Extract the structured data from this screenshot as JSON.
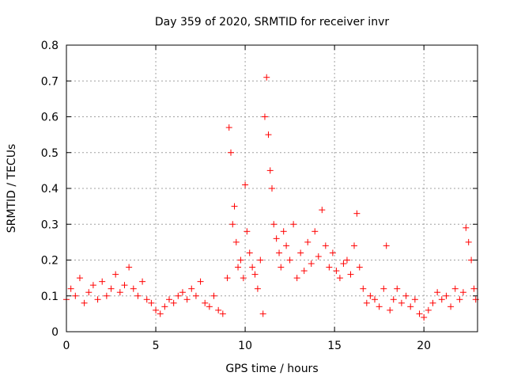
{
  "chart_data": {
    "type": "scatter",
    "title": "Day 359 of 2020, SRMTID for receiver invr",
    "xlabel": "GPS time / hours",
    "ylabel": "SRMTID / TECUs",
    "xlim": [
      0,
      23
    ],
    "ylim": [
      0,
      0.8
    ],
    "x_ticks": [
      0,
      5,
      10,
      15,
      20
    ],
    "x_tick_labels": [
      "0",
      "5",
      "10",
      "15",
      "20"
    ],
    "y_ticks": [
      0,
      0.1,
      0.2,
      0.3,
      0.4,
      0.5,
      0.6,
      0.7,
      0.8
    ],
    "y_tick_labels": [
      "0",
      "0.1",
      "0.2",
      "0.3",
      "0.4",
      "0.5",
      "0.6",
      "0.7",
      "0.8"
    ],
    "grid": true,
    "marker": "+",
    "series_color": "#ff0000",
    "series": [
      {
        "name": "SRMTID",
        "x": [
          0.0,
          0.25,
          0.5,
          0.75,
          1.0,
          1.25,
          1.5,
          1.75,
          2.0,
          2.25,
          2.5,
          2.75,
          3.0,
          3.25,
          3.5,
          3.75,
          4.0,
          4.25,
          4.5,
          4.75,
          5.0,
          5.25,
          5.5,
          5.75,
          6.0,
          6.25,
          6.5,
          6.75,
          7.0,
          7.25,
          7.5,
          7.75,
          8.0,
          8.25,
          8.5,
          8.75,
          9.0,
          9.1,
          9.2,
          9.3,
          9.4,
          9.5,
          9.6,
          9.75,
          9.9,
          10.0,
          10.1,
          10.25,
          10.4,
          10.55,
          10.7,
          10.85,
          11.0,
          11.1,
          11.2,
          11.3,
          11.4,
          11.5,
          11.6,
          11.75,
          11.9,
          12.0,
          12.15,
          12.3,
          12.5,
          12.7,
          12.9,
          13.1,
          13.3,
          13.5,
          13.7,
          13.9,
          14.1,
          14.3,
          14.5,
          14.7,
          14.9,
          15.1,
          15.3,
          15.5,
          15.7,
          15.9,
          16.1,
          16.25,
          16.4,
          16.6,
          16.8,
          17.0,
          17.25,
          17.5,
          17.75,
          17.9,
          18.1,
          18.3,
          18.5,
          18.75,
          19.0,
          19.25,
          19.5,
          19.75,
          20.0,
          20.25,
          20.5,
          20.75,
          21.0,
          21.25,
          21.5,
          21.75,
          22.0,
          22.2,
          22.35,
          22.5,
          22.65,
          22.8,
          22.9
        ],
        "y": [
          0.09,
          0.12,
          0.1,
          0.15,
          0.08,
          0.11,
          0.13,
          0.09,
          0.14,
          0.1,
          0.12,
          0.16,
          0.11,
          0.13,
          0.18,
          0.12,
          0.1,
          0.14,
          0.09,
          0.08,
          0.06,
          0.05,
          0.07,
          0.09,
          0.08,
          0.1,
          0.11,
          0.09,
          0.12,
          0.1,
          0.14,
          0.08,
          0.07,
          0.1,
          0.06,
          0.05,
          0.15,
          0.57,
          0.5,
          0.3,
          0.35,
          0.25,
          0.18,
          0.2,
          0.15,
          0.41,
          0.28,
          0.22,
          0.18,
          0.16,
          0.12,
          0.2,
          0.05,
          0.6,
          0.71,
          0.55,
          0.45,
          0.4,
          0.3,
          0.26,
          0.22,
          0.18,
          0.28,
          0.24,
          0.2,
          0.3,
          0.15,
          0.22,
          0.17,
          0.25,
          0.19,
          0.28,
          0.21,
          0.34,
          0.24,
          0.18,
          0.22,
          0.17,
          0.15,
          0.19,
          0.2,
          0.16,
          0.24,
          0.33,
          0.18,
          0.12,
          0.08,
          0.1,
          0.09,
          0.07,
          0.12,
          0.24,
          0.06,
          0.09,
          0.12,
          0.08,
          0.1,
          0.07,
          0.09,
          0.05,
          0.04,
          0.06,
          0.08,
          0.11,
          0.09,
          0.1,
          0.07,
          0.12,
          0.09,
          0.11,
          0.29,
          0.25,
          0.2,
          0.12,
          0.09
        ]
      }
    ]
  }
}
